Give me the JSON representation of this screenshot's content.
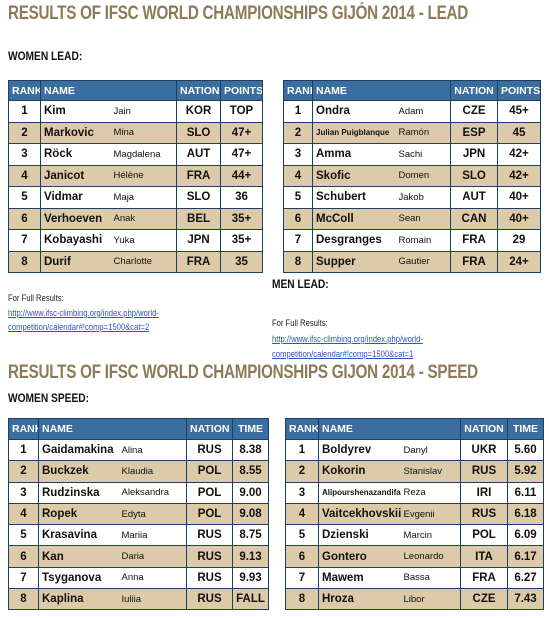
{
  "titles": {
    "lead": "RESULTS OF IFSC WORLD CHAMPIONSHIPS GIJÓN 2014 - LEAD",
    "speed": "RESULTS OF IFSC WORLD CHAMPIONSHIPS GIJON 2014 - SPEED"
  },
  "women_lead": {
    "label": "WOMEN LEAD:",
    "header": [
      "RANK",
      "NAME",
      "NATION",
      "POINTS"
    ],
    "rows": [
      [
        "1",
        "Kim",
        "Jain",
        "KOR",
        "TOP"
      ],
      [
        "2",
        "Markovic",
        "Mina",
        "SLO",
        "47+"
      ],
      [
        "3",
        "Röck",
        "Magdalena",
        "AUT",
        "47+"
      ],
      [
        "4",
        "Janicot",
        "Hélène",
        "FRA",
        "44+"
      ],
      [
        "5",
        "Vidmar",
        "Maja",
        "SLO",
        "36"
      ],
      [
        "6",
        "Verhoeven",
        "Anak",
        "BEL",
        "35+"
      ],
      [
        "7",
        "Kobayashi",
        "Yuka",
        "JPN",
        "35+"
      ],
      [
        "8",
        "Durif",
        "Charlotte",
        "FRA",
        "35"
      ]
    ],
    "results_label": "For Full Results:",
    "link": [
      "http://www.ifsc-climbing.org/index.php/world-",
      "competition/calendar#!comp=1500&cat=2"
    ]
  },
  "men_lead": {
    "label": "MEN LEAD:",
    "header": [
      "RANK",
      "NAME",
      "NATION",
      "POINTS"
    ],
    "rows": [
      [
        "1",
        "Ondra",
        "Adam",
        "CZE",
        "45+"
      ],
      [
        "2",
        "Julian Puigblanque",
        "Ramón",
        "ESP",
        "45"
      ],
      [
        "3",
        "Amma",
        "Sachi",
        "JPN",
        "42+"
      ],
      [
        "4",
        "Skofic",
        "Domen",
        "SLO",
        "42+"
      ],
      [
        "5",
        "Schubert",
        "Jakob",
        "AUT",
        "40+"
      ],
      [
        "6",
        "McColl",
        "Sean",
        "CAN",
        "40+"
      ],
      [
        "7",
        "Desgranges",
        "Romain",
        "FRA",
        "29"
      ],
      [
        "8",
        "Supper",
        "Gautier",
        "FRA",
        "24+"
      ]
    ],
    "results_label": "For Full Results:",
    "link": [
      "http://www.ifsc-climbing.org/index.php/world-",
      "competition/calendar#!comp=1500&cat=1"
    ]
  },
  "women_speed": {
    "label": "WOMEN SPEED:",
    "header": [
      "RANK",
      "NAME",
      "NATION",
      "TIME"
    ],
    "rows": [
      [
        "1",
        "Gaidamakina",
        "Alina",
        "RUS",
        "8.38"
      ],
      [
        "2",
        "Buckzek",
        "Klaudia",
        "POL",
        "8.55"
      ],
      [
        "3",
        "Rudzinska",
        "Aleksandra",
        "POL",
        "9.00"
      ],
      [
        "4",
        "Ropek",
        "Edyta",
        "POL",
        "9.08"
      ],
      [
        "5",
        "Krasavina",
        "Mariia",
        "RUS",
        "8.75"
      ],
      [
        "6",
        "Kan",
        "Daria",
        "RUS",
        "9.13"
      ],
      [
        "7",
        "Tsyganova",
        "Anna",
        "RUS",
        "9.93"
      ],
      [
        "8",
        "Kaplina",
        "Iuliia",
        "RUS",
        "FALL"
      ]
    ]
  },
  "men_speed": {
    "header": [
      "RANK",
      "NAME",
      "NATION",
      "TIME"
    ],
    "rows": [
      [
        "1",
        "Boldyrev",
        "Danyl",
        "UKR",
        "5.60"
      ],
      [
        "2",
        "Kokorin",
        "Stanislav",
        "RUS",
        "5.92"
      ],
      [
        "3",
        "Alipourshenazandifar",
        "Reza",
        "IRI",
        "6.11"
      ],
      [
        "4",
        "Vaitcekhovskii",
        "Evgenii",
        "RUS",
        "6.18"
      ],
      [
        "5",
        "Dzienski",
        "Marcin",
        "POL",
        "6.09"
      ],
      [
        "6",
        "Gontero",
        "Leonardo",
        "ITA",
        "6.17"
      ],
      [
        "7",
        "Mawem",
        "Bassa",
        "FRA",
        "6.27"
      ],
      [
        "8",
        "Hroza",
        "Libor",
        "CZE",
        "7.43"
      ]
    ]
  }
}
